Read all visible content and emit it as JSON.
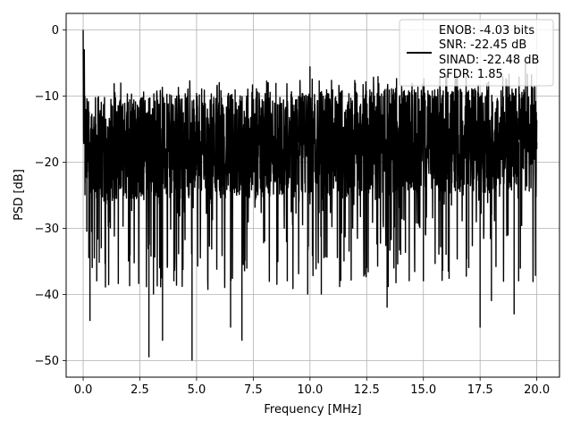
{
  "chart_data": {
    "type": "line",
    "title": "",
    "xlabel": "Frequency [MHz]",
    "ylabel": "PSD [dB]",
    "xlim": [
      -0.75,
      21.0
    ],
    "ylim": [
      -52.5,
      2.5
    ],
    "xticks": [
      0.0,
      2.5,
      5.0,
      7.5,
      10.0,
      12.5,
      15.0,
      17.5,
      20.0
    ],
    "xtick_labels": [
      "0.0",
      "2.5",
      "5.0",
      "7.5",
      "10.0",
      "12.5",
      "15.0",
      "17.5",
      "20.0"
    ],
    "yticks": [
      0,
      -10,
      -20,
      -30,
      -40,
      -50
    ],
    "ytick_labels": [
      "0",
      "−10",
      "−20",
      "−30",
      "−40",
      "−50"
    ],
    "grid": true,
    "legend": {
      "placement": "top-right",
      "entries": [
        "ENOB: -4.03 bits",
        "SNR: -22.45 dB",
        "SINAD: -22.48 dB",
        "SFDR: 1.85"
      ]
    },
    "series": [
      {
        "color": "#000000",
        "x": [
          0.0,
          0.02,
          0.05,
          0.08,
          0.12,
          0.16,
          0.2,
          0.25,
          0.3,
          0.35,
          0.4,
          0.5,
          0.6,
          0.7,
          0.8,
          1.0,
          1.2,
          1.5,
          2.0,
          2.5,
          2.9,
          3.0,
          3.1,
          3.5,
          3.6,
          4.0,
          4.5,
          4.8,
          5.0,
          5.5,
          6.0,
          6.5,
          6.7,
          7.0,
          7.5,
          8.0,
          8.5,
          9.0,
          9.5,
          9.9,
          10.0,
          10.5,
          11.0,
          11.5,
          12.0,
          12.5,
          13.0,
          13.4,
          13.5,
          14.0,
          14.5,
          15.0,
          15.5,
          16.0,
          16.5,
          17.0,
          17.2,
          17.5,
          17.8,
          18.0,
          18.5,
          19.0,
          19.2,
          19.5,
          20.0
        ],
        "values": [
          0.0,
          -20.0,
          -3.0,
          -25.0,
          -15.0,
          -30.5,
          -18.0,
          -34.5,
          -44.0,
          -22.0,
          -36.0,
          -16.0,
          -38.0,
          -24.0,
          -33.0,
          -14.0,
          -30.0,
          -20.0,
          -35.0,
          -12.0,
          -49.5,
          -22.0,
          -40.0,
          -47.0,
          -11.0,
          -38.0,
          -14.0,
          -50.0,
          -10.0,
          -35.0,
          -10.0,
          -45.0,
          -9.0,
          -47.0,
          -11.0,
          -32.0,
          -8.0,
          -38.0,
          -10.0,
          -40.0,
          -5.5,
          -40.0,
          -9.0,
          -35.0,
          -8.0,
          -36.0,
          -7.0,
          -42.0,
          -9.0,
          -34.0,
          -8.0,
          -38.0,
          -9.0,
          -34.0,
          -7.0,
          -36.0,
          -9.0,
          -45.0,
          -8.0,
          -41.0,
          -7.0,
          -43.0,
          -38.0,
          -5.0,
          -18.0
        ]
      }
    ]
  }
}
